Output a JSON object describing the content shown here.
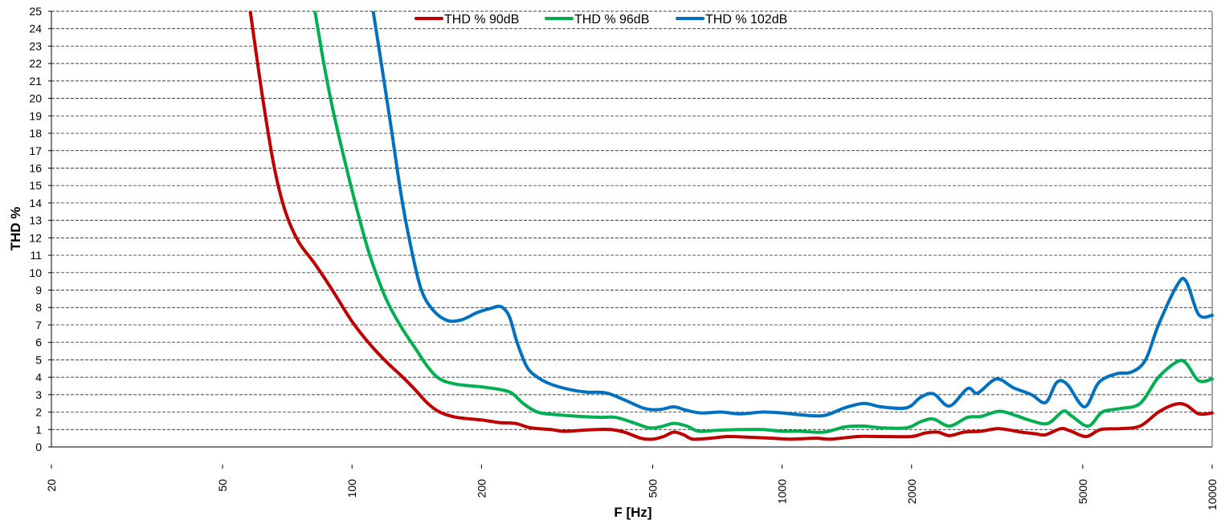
{
  "chart_data": {
    "type": "line",
    "title": "",
    "xlabel": "F [Hz]",
    "ylabel": "THD %",
    "xscale": "log",
    "xlim": [
      20,
      10000
    ],
    "ylim": [
      0,
      25
    ],
    "xticks": [
      20,
      50,
      100,
      200,
      500,
      1000,
      2000,
      5000,
      10000
    ],
    "xtick_labels": [
      "20",
      "50",
      "100",
      "200",
      "500",
      "1000",
      "2000",
      "5000",
      "10000"
    ],
    "yticks": [
      0,
      1,
      2,
      3,
      4,
      5,
      6,
      7,
      8,
      9,
      10,
      11,
      12,
      13,
      14,
      15,
      16,
      17,
      18,
      19,
      20,
      21,
      22,
      23,
      24,
      25
    ],
    "ytick_labels": [
      "0",
      "1",
      "2",
      "3",
      "4",
      "5",
      "6",
      "7",
      "8",
      "9",
      "10",
      "11",
      "12",
      "13",
      "14",
      "15",
      "16",
      "17",
      "18",
      "19",
      "20",
      "21",
      "22",
      "23",
      "24",
      "25"
    ],
    "grid": "horizontal dashed",
    "legend_position": "top-center",
    "series": [
      {
        "name": "THD % 90dB",
        "color": "#C00000",
        "points": [
          [
            58,
            25
          ],
          [
            62,
            20
          ],
          [
            66,
            16
          ],
          [
            70,
            13.5
          ],
          [
            75,
            11.8
          ],
          [
            82,
            10.5
          ],
          [
            90,
            9
          ],
          [
            100,
            7.2
          ],
          [
            110,
            5.9
          ],
          [
            120,
            4.9
          ],
          [
            130,
            4.1
          ],
          [
            140,
            3.3
          ],
          [
            150,
            2.5
          ],
          [
            160,
            2
          ],
          [
            175,
            1.7
          ],
          [
            200,
            1.55
          ],
          [
            220,
            1.4
          ],
          [
            240,
            1.35
          ],
          [
            260,
            1.1
          ],
          [
            290,
            1
          ],
          [
            310,
            0.9
          ],
          [
            340,
            0.95
          ],
          [
            370,
            1
          ],
          [
            400,
            1
          ],
          [
            430,
            0.85
          ],
          [
            470,
            0.5
          ],
          [
            500,
            0.45
          ],
          [
            530,
            0.6
          ],
          [
            560,
            0.85
          ],
          [
            590,
            0.7
          ],
          [
            620,
            0.45
          ],
          [
            680,
            0.5
          ],
          [
            750,
            0.6
          ],
          [
            850,
            0.55
          ],
          [
            950,
            0.5
          ],
          [
            1050,
            0.45
          ],
          [
            1200,
            0.5
          ],
          [
            1300,
            0.45
          ],
          [
            1500,
            0.6
          ],
          [
            1700,
            0.6
          ],
          [
            2000,
            0.6
          ],
          [
            2150,
            0.8
          ],
          [
            2300,
            0.85
          ],
          [
            2450,
            0.65
          ],
          [
            2650,
            0.85
          ],
          [
            2900,
            0.9
          ],
          [
            3200,
            1.05
          ],
          [
            3600,
            0.85
          ],
          [
            3900,
            0.75
          ],
          [
            4100,
            0.7
          ],
          [
            4450,
            1.05
          ],
          [
            4700,
            0.9
          ],
          [
            5100,
            0.6
          ],
          [
            5500,
            1
          ],
          [
            6100,
            1.05
          ],
          [
            6800,
            1.2
          ],
          [
            7500,
            2
          ],
          [
            8200,
            2.45
          ],
          [
            8700,
            2.4
          ],
          [
            9300,
            1.9
          ],
          [
            10000,
            1.95
          ]
        ]
      },
      {
        "name": "THD % 96dB",
        "color": "#00B050",
        "points": [
          [
            82,
            25
          ],
          [
            86,
            22
          ],
          [
            90,
            19.5
          ],
          [
            96,
            16.5
          ],
          [
            103,
            13.5
          ],
          [
            110,
            11
          ],
          [
            120,
            8.5
          ],
          [
            130,
            6.9
          ],
          [
            140,
            5.7
          ],
          [
            150,
            4.6
          ],
          [
            160,
            3.9
          ],
          [
            175,
            3.6
          ],
          [
            200,
            3.45
          ],
          [
            220,
            3.3
          ],
          [
            235,
            3.1
          ],
          [
            250,
            2.5
          ],
          [
            270,
            2
          ],
          [
            300,
            1.85
          ],
          [
            340,
            1.75
          ],
          [
            380,
            1.7
          ],
          [
            410,
            1.7
          ],
          [
            450,
            1.4
          ],
          [
            490,
            1.1
          ],
          [
            520,
            1.15
          ],
          [
            560,
            1.35
          ],
          [
            600,
            1.2
          ],
          [
            640,
            0.9
          ],
          [
            700,
            0.95
          ],
          [
            800,
            1
          ],
          [
            900,
            1
          ],
          [
            1000,
            0.9
          ],
          [
            1100,
            0.9
          ],
          [
            1250,
            0.85
          ],
          [
            1400,
            1.15
          ],
          [
            1550,
            1.2
          ],
          [
            1700,
            1.1
          ],
          [
            1950,
            1.1
          ],
          [
            2100,
            1.45
          ],
          [
            2250,
            1.6
          ],
          [
            2450,
            1.2
          ],
          [
            2700,
            1.7
          ],
          [
            2900,
            1.75
          ],
          [
            3200,
            2.05
          ],
          [
            3500,
            1.8
          ],
          [
            3800,
            1.5
          ],
          [
            4150,
            1.35
          ],
          [
            4500,
            2.05
          ],
          [
            4700,
            1.8
          ],
          [
            5150,
            1.2
          ],
          [
            5550,
            2
          ],
          [
            6100,
            2.2
          ],
          [
            6800,
            2.5
          ],
          [
            7500,
            4
          ],
          [
            8300,
            4.9
          ],
          [
            8700,
            4.8
          ],
          [
            9300,
            3.8
          ],
          [
            10000,
            3.9
          ]
        ]
      },
      {
        "name": "THD % 102dB",
        "color": "#0070C0",
        "points": [
          [
            112,
            25
          ],
          [
            117,
            22
          ],
          [
            123,
            18.5
          ],
          [
            130,
            14.5
          ],
          [
            137,
            11.5
          ],
          [
            145,
            9
          ],
          [
            155,
            7.8
          ],
          [
            167,
            7.25
          ],
          [
            180,
            7.3
          ],
          [
            195,
            7.7
          ],
          [
            210,
            7.95
          ],
          [
            222,
            8.05
          ],
          [
            232,
            7.5
          ],
          [
            242,
            6
          ],
          [
            255,
            4.6
          ],
          [
            270,
            4
          ],
          [
            290,
            3.6
          ],
          [
            320,
            3.3
          ],
          [
            350,
            3.15
          ],
          [
            390,
            3.1
          ],
          [
            430,
            2.7
          ],
          [
            480,
            2.2
          ],
          [
            520,
            2.15
          ],
          [
            560,
            2.3
          ],
          [
            600,
            2.1
          ],
          [
            650,
            1.95
          ],
          [
            720,
            2
          ],
          [
            800,
            1.9
          ],
          [
            900,
            2
          ],
          [
            1000,
            1.95
          ],
          [
            1100,
            1.85
          ],
          [
            1250,
            1.8
          ],
          [
            1400,
            2.25
          ],
          [
            1550,
            2.5
          ],
          [
            1700,
            2.3
          ],
          [
            1950,
            2.25
          ],
          [
            2100,
            2.85
          ],
          [
            2250,
            3.05
          ],
          [
            2450,
            2.35
          ],
          [
            2700,
            3.35
          ],
          [
            2850,
            3.1
          ],
          [
            3150,
            3.9
          ],
          [
            3450,
            3.4
          ],
          [
            3800,
            3
          ],
          [
            4100,
            2.55
          ],
          [
            4350,
            3.7
          ],
          [
            4600,
            3.6
          ],
          [
            5050,
            2.3
          ],
          [
            5450,
            3.7
          ],
          [
            6000,
            4.2
          ],
          [
            6500,
            4.3
          ],
          [
            7000,
            5
          ],
          [
            7500,
            7
          ],
          [
            8300,
            9.3
          ],
          [
            8700,
            9.5
          ],
          [
            9300,
            7.6
          ],
          [
            10000,
            7.55
          ]
        ]
      }
    ]
  }
}
